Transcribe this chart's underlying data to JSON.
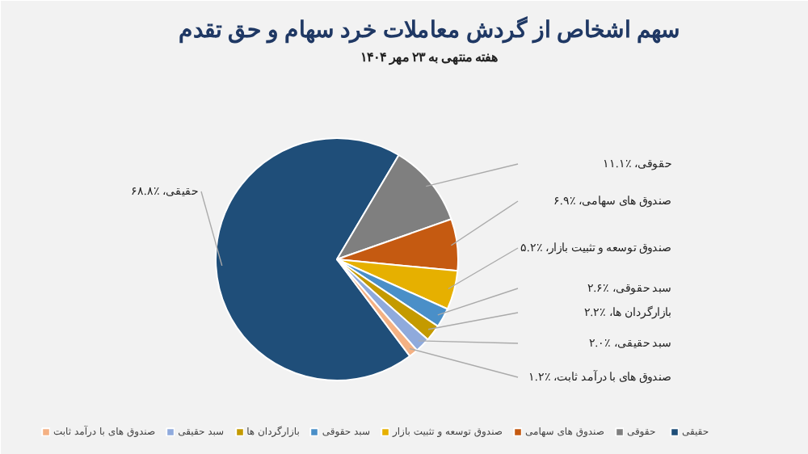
{
  "chart_data": {
    "type": "pie",
    "title": "سهم اشخاص از گردش معاملات خرد سهام و حق تقدم",
    "subtitle": "هفته منتهی به ۲۳ مهر ۱۴۰۴",
    "categories": [
      "حقیقی",
      "حقوقی",
      "صندوق های سهامی",
      "صندوق توسعه و تثبیت بازار",
      "سبد حقوقی",
      "بازارگردان ها",
      "سبد حقیقی",
      "صندوق های با درآمد ثابت"
    ],
    "values": [
      68.8,
      11.1,
      6.9,
      5.2,
      2.6,
      2.2,
      2.0,
      1.2
    ],
    "value_labels": [
      "، ٪۶۸.۸",
      "، ٪۱۱.۱",
      "، ٪۶.۹",
      "، ٪۵.۲",
      "، ٪۲.۶",
      "، ٪۲.۲",
      "، ٪۲.۰",
      "، ٪۱.۲"
    ],
    "colors": [
      "#1f4e79",
      "#7f7f7f",
      "#c55a11",
      "#e6b000",
      "#4a8fc8",
      "#c49a00",
      "#8faadc",
      "#f4b183"
    ],
    "legend": "bottom"
  }
}
